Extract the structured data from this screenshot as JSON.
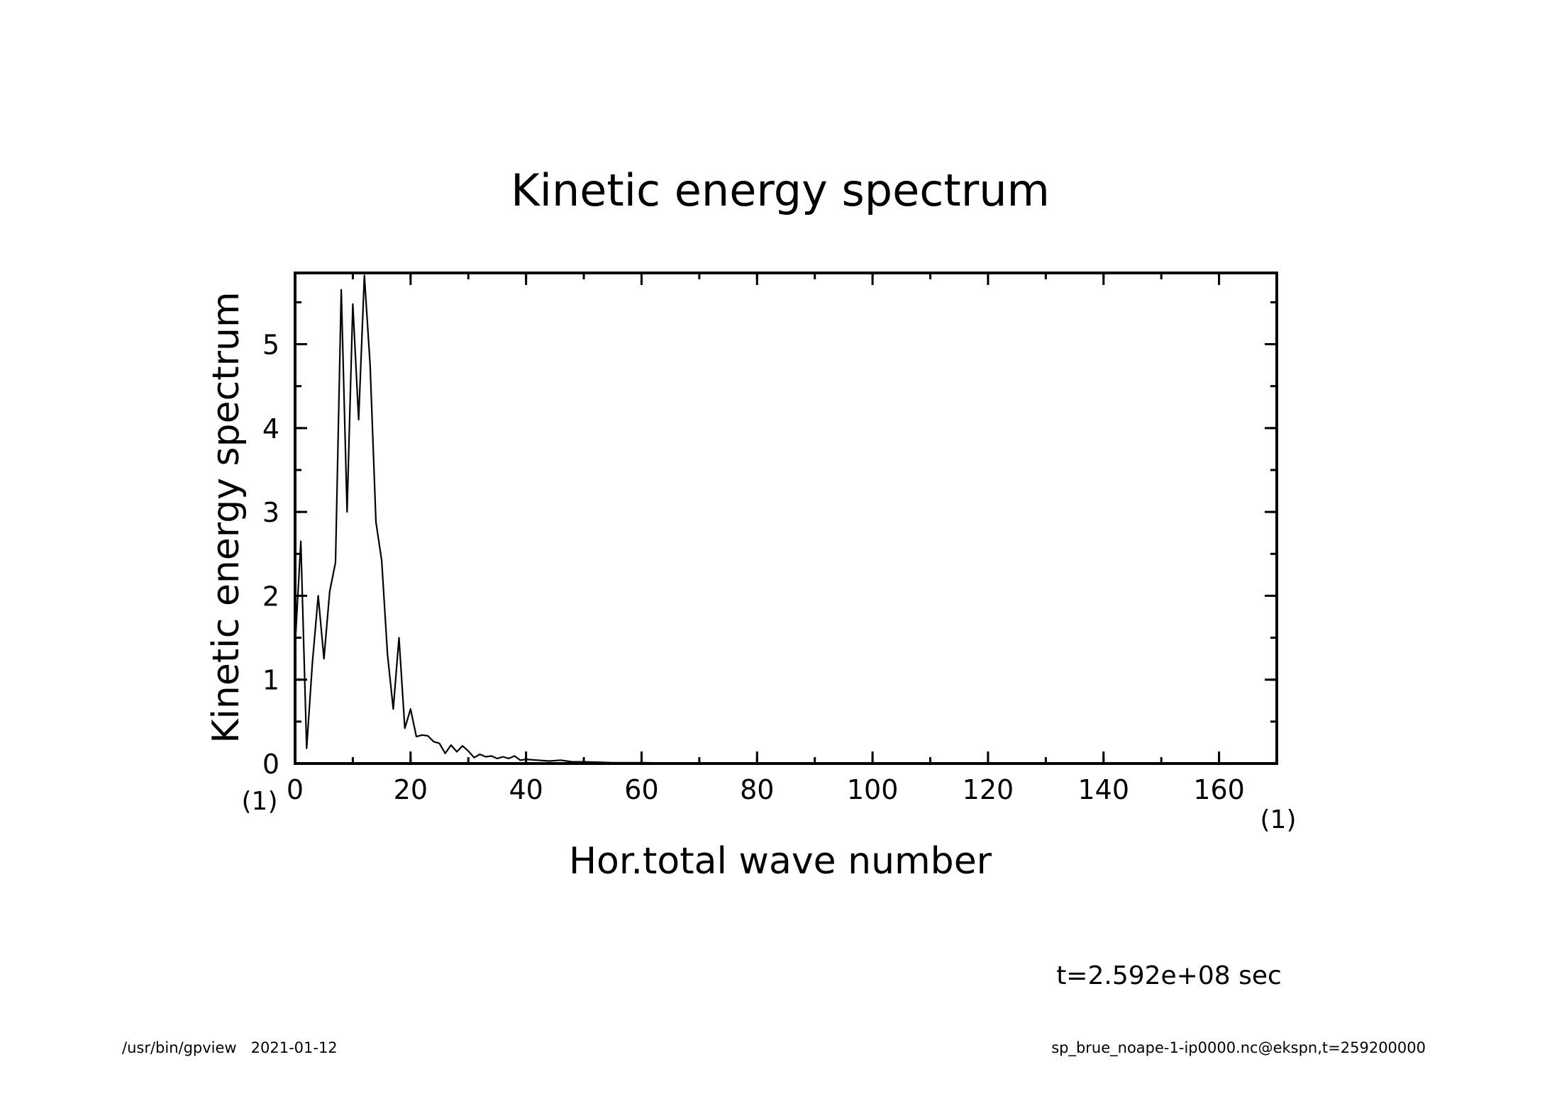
{
  "chart_data": {
    "type": "line",
    "title": "Kinetic energy spectrum",
    "xlabel": "Hor.total wave number",
    "ylabel": "Kinetic energy spectrum",
    "x_unit": "(1)",
    "y_unit": "(1)",
    "xlim": [
      0,
      170
    ],
    "ylim": [
      0,
      5.85
    ],
    "x_major_ticks": [
      0,
      20,
      40,
      60,
      80,
      100,
      120,
      140,
      160
    ],
    "x_tick_labels": [
      "0",
      "20",
      "40",
      "60",
      "80",
      "100",
      "120",
      "140",
      "160"
    ],
    "x_minor_step": 10,
    "y_major_ticks": [
      0,
      1,
      2,
      3,
      4,
      5
    ],
    "y_tick_labels": [
      "0",
      "1",
      "2",
      "3",
      "4",
      "5"
    ],
    "y_minor_step": 0.5,
    "grid": false,
    "legend": "none",
    "series": [
      {
        "x": [
          0,
          1,
          2,
          3,
          4,
          5,
          6,
          7,
          8,
          9,
          10,
          11,
          12,
          13,
          14,
          15,
          16,
          17,
          18,
          19,
          20,
          21,
          22,
          23,
          24,
          25,
          26,
          27,
          28,
          29,
          30,
          31,
          32,
          33,
          34,
          35,
          36,
          37,
          38,
          39,
          40,
          42,
          44,
          46,
          48,
          50,
          55,
          60,
          65,
          70,
          80,
          90,
          100,
          110,
          120,
          130,
          140,
          150,
          160,
          170
        ],
        "y": [
          1.4,
          2.65,
          0.18,
          1.2,
          2.0,
          1.25,
          2.05,
          2.4,
          5.65,
          3.0,
          5.48,
          4.1,
          5.82,
          4.75,
          2.88,
          2.42,
          1.3,
          0.65,
          1.5,
          0.42,
          0.65,
          0.32,
          0.34,
          0.33,
          0.26,
          0.24,
          0.12,
          0.22,
          0.14,
          0.21,
          0.15,
          0.07,
          0.11,
          0.08,
          0.09,
          0.06,
          0.08,
          0.06,
          0.09,
          0.04,
          0.05,
          0.04,
          0.03,
          0.04,
          0.02,
          0.02,
          0.01,
          0.01,
          0.005,
          0.004,
          0.003,
          0.002,
          0.002,
          0.001,
          0.001,
          0.001,
          0.001,
          0.001,
          0.001,
          0.001
        ]
      }
    ]
  },
  "annotations": {
    "time": "t=2.592e+08 sec",
    "footer_left": "/usr/bin/gpview   2021-01-12",
    "footer_right": "sp_brue_noape-1-ip0000.nc@ekspn,t=259200000"
  }
}
